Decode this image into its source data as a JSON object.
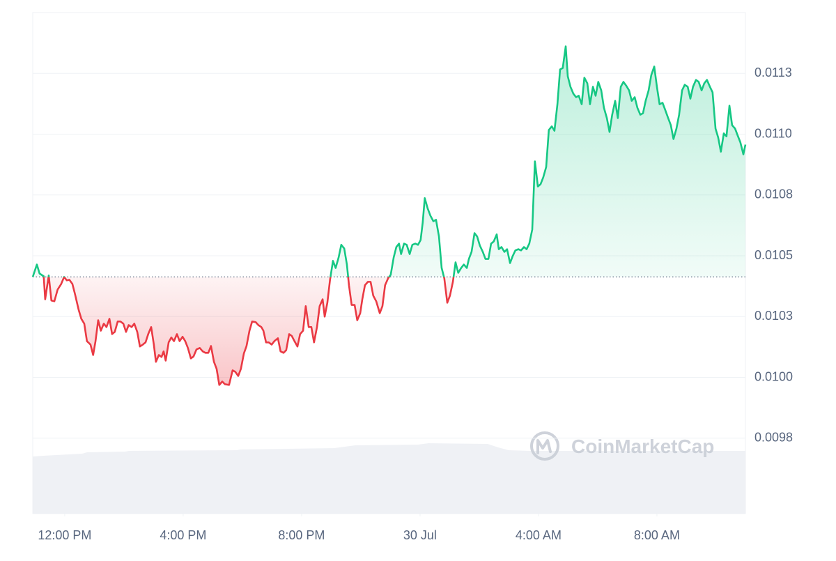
{
  "chart_data": {
    "type": "line",
    "x": [
      -1.08,
      -0.94,
      -0.85,
      -0.71,
      -0.66,
      -0.54,
      -0.45,
      -0.35,
      -0.24,
      -0.12,
      -0.02,
      0.07,
      0.16,
      0.26,
      0.35,
      0.47,
      0.56,
      0.66,
      0.75,
      0.87,
      0.96,
      1.04,
      1.13,
      1.22,
      1.32,
      1.41,
      1.51,
      1.6,
      1.69,
      1.79,
      1.88,
      1.98,
      2.07,
      2.16,
      2.26,
      2.35,
      2.45,
      2.54,
      2.64,
      2.73,
      2.82,
      2.92,
      3.01,
      3.08,
      3.18,
      3.27,
      3.34,
      3.41,
      3.51,
      3.6,
      3.69,
      3.79,
      3.88,
      3.98,
      4.07,
      4.16,
      4.26,
      4.35,
      4.45,
      4.56,
      4.66,
      4.75,
      4.85,
      4.94,
      5.04,
      5.13,
      5.22,
      5.32,
      5.41,
      5.55,
      5.67,
      5.76,
      5.86,
      5.95,
      6.05,
      6.14,
      6.24,
      6.33,
      6.45,
      6.54,
      6.64,
      6.71,
      6.8,
      6.89,
      6.99,
      7.08,
      7.2,
      7.29,
      7.39,
      7.48,
      7.58,
      7.67,
      7.76,
      7.86,
      7.95,
      8.05,
      8.14,
      8.24,
      8.33,
      8.42,
      8.52,
      8.61,
      8.71,
      8.78,
      8.87,
      8.96,
      9.06,
      9.15,
      9.25,
      9.34,
      9.44,
      9.53,
      9.6,
      9.69,
      9.79,
      9.88,
      9.98,
      10.05,
      10.14,
      10.24,
      10.33,
      10.42,
      10.52,
      10.64,
      10.73,
      10.82,
      10.92,
      11.01,
      11.11,
      11.2,
      11.29,
      11.36,
      11.46,
      11.55,
      11.65,
      11.74,
      11.84,
      11.93,
      12.02,
      12.09,
      12.16,
      12.26,
      12.35,
      12.45,
      12.54,
      12.64,
      12.73,
      12.82,
      12.92,
      13.01,
      13.11,
      13.2,
      13.29,
      13.39,
      13.48,
      13.58,
      13.65,
      13.74,
      13.84,
      13.93,
      14.02,
      14.12,
      14.21,
      14.31,
      14.4,
      14.49,
      14.59,
      14.66,
      14.75,
      14.85,
      14.94,
      15.04,
      15.13,
      15.22,
      15.32,
      15.41,
      15.51,
      15.6,
      15.69,
      15.79,
      15.88,
      15.98,
      16.07,
      16.16,
      16.26,
      16.35,
      16.45,
      16.54,
      16.64,
      16.73,
      16.82,
      16.92,
      16.99,
      17.08,
      17.18,
      17.27,
      17.36,
      17.46,
      17.55,
      17.65,
      17.74,
      17.84,
      17.93,
      18.02,
      18.12,
      18.21,
      18.31,
      18.4,
      18.49,
      18.59,
      18.68,
      18.78,
      18.87,
      18.96,
      19.06,
      19.15,
      19.25,
      19.34,
      19.44,
      19.53,
      19.62,
      19.72,
      19.81,
      19.91,
      20.0,
      20.09,
      20.19,
      20.28,
      20.38,
      20.47,
      20.56,
      20.66,
      20.75,
      20.85,
      20.94,
      21.04,
      21.13,
      21.22,
      21.32,
      21.41,
      21.51,
      21.6,
      21.69,
      21.79,
      21.88,
      21.98,
      22.07,
      22.16,
      22.26,
      22.35,
      22.45,
      22.54,
      22.64,
      22.73,
      22.82,
      22.92,
      22.99
    ],
    "values": [
      0.010413,
      0.010464,
      0.010427,
      0.010416,
      0.010321,
      0.010419,
      0.010316,
      0.010313,
      0.010361,
      0.010384,
      0.010413,
      0.010399,
      0.010401,
      0.010384,
      0.010341,
      0.010278,
      0.010241,
      0.010221,
      0.010149,
      0.010135,
      0.010092,
      0.010149,
      0.010235,
      0.010192,
      0.010221,
      0.010207,
      0.010241,
      0.010178,
      0.010187,
      0.01023,
      0.01023,
      0.010221,
      0.010187,
      0.010215,
      0.010207,
      0.010221,
      0.010187,
      0.010127,
      0.010135,
      0.010144,
      0.010178,
      0.010207,
      0.010135,
      0.010064,
      0.010092,
      0.010084,
      0.010107,
      0.010069,
      0.010144,
      0.010164,
      0.010149,
      0.010178,
      0.010149,
      0.010167,
      0.010149,
      0.010121,
      0.010078,
      0.010086,
      0.010115,
      0.010121,
      0.010107,
      0.010101,
      0.010101,
      0.010129,
      0.010064,
      0.010035,
      0.009969,
      0.009983,
      0.009972,
      0.009969,
      0.010029,
      0.010023,
      0.010006,
      0.010035,
      0.010098,
      0.010129,
      0.010192,
      0.01023,
      0.010227,
      0.010215,
      0.010207,
      0.010192,
      0.010144,
      0.010144,
      0.010135,
      0.010149,
      0.010161,
      0.010107,
      0.010101,
      0.010112,
      0.010178,
      0.01017,
      0.010149,
      0.010127,
      0.010178,
      0.010192,
      0.010293,
      0.010207,
      0.010207,
      0.010144,
      0.010207,
      0.010293,
      0.010321,
      0.01025,
      0.010307,
      0.010401,
      0.010479,
      0.01045,
      0.010493,
      0.010545,
      0.01053,
      0.010464,
      0.010379,
      0.010298,
      0.010298,
      0.010235,
      0.010264,
      0.010321,
      0.010379,
      0.010393,
      0.010393,
      0.010336,
      0.010313,
      0.010264,
      0.010293,
      0.010379,
      0.010407,
      0.010422,
      0.010493,
      0.010536,
      0.01055,
      0.010507,
      0.01055,
      0.010545,
      0.010507,
      0.010545,
      0.01055,
      0.010545,
      0.010565,
      0.010636,
      0.010737,
      0.010694,
      0.010665,
      0.010642,
      0.010648,
      0.010579,
      0.01045,
      0.010407,
      0.010307,
      0.010336,
      0.010393,
      0.010473,
      0.01043,
      0.01045,
      0.010464,
      0.01045,
      0.010487,
      0.010516,
      0.010593,
      0.010579,
      0.010542,
      0.010516,
      0.010487,
      0.010487,
      0.01055,
      0.010559,
      0.010588,
      0.010527,
      0.010536,
      0.010516,
      0.010527,
      0.01047,
      0.010499,
      0.010522,
      0.010527,
      0.010522,
      0.010536,
      0.010527,
      0.01055,
      0.010608,
      0.010888,
      0.010785,
      0.010794,
      0.010822,
      0.010865,
      0.011017,
      0.011032,
      0.011014,
      0.011123,
      0.011266,
      0.011272,
      0.011361,
      0.011238,
      0.011195,
      0.011166,
      0.011152,
      0.011158,
      0.011123,
      0.011232,
      0.011209,
      0.011123,
      0.011195,
      0.011158,
      0.011215,
      0.01118,
      0.011109,
      0.011066,
      0.011009,
      0.01108,
      0.011137,
      0.011066,
      0.011195,
      0.011215,
      0.0112,
      0.01118,
      0.011137,
      0.011152,
      0.011109,
      0.01108,
      0.011086,
      0.011137,
      0.01118,
      0.011243,
      0.011278,
      0.011195,
      0.011123,
      0.011129,
      0.0111,
      0.011066,
      0.011037,
      0.01098,
      0.011023,
      0.01108,
      0.01118,
      0.011203,
      0.011195,
      0.011146,
      0.011195,
      0.011223,
      0.011215,
      0.01118,
      0.011209,
      0.011223,
      0.011195,
      0.011172,
      0.011023,
      0.010986,
      0.010928,
      0.011003,
      0.010991,
      0.011117,
      0.011037,
      0.011023,
      0.010994,
      0.010966,
      0.010917,
      0.010957
    ],
    "baseline": 0.010413,
    "up_color": "#16c784",
    "down_color": "#ea3943",
    "xlim": [
      -1.08,
      22.99
    ],
    "ylim": [
      0.00944,
      0.0115
    ],
    "xticks": [
      {
        "value": 0,
        "label": "12:00 PM"
      },
      {
        "value": 4,
        "label": "4:00 PM"
      },
      {
        "value": 8,
        "label": "8:00 PM"
      },
      {
        "value": 12,
        "label": "30 Jul"
      },
      {
        "value": 16,
        "label": "4:00 AM"
      },
      {
        "value": 20,
        "label": "8:00 AM"
      }
    ],
    "yticks": [
      {
        "value": 0.01125,
        "label": "0.0113"
      },
      {
        "value": 0.011,
        "label": "0.0110"
      },
      {
        "value": 0.01075,
        "label": "0.0108"
      },
      {
        "value": 0.0105,
        "label": "0.0105"
      },
      {
        "value": 0.01025,
        "label": "0.0103"
      },
      {
        "value": 0.01,
        "label": "0.0100"
      },
      {
        "value": 0.00975,
        "label": "0.0098"
      }
    ],
    "grid": true,
    "watermark": "CoinMarketCap"
  }
}
